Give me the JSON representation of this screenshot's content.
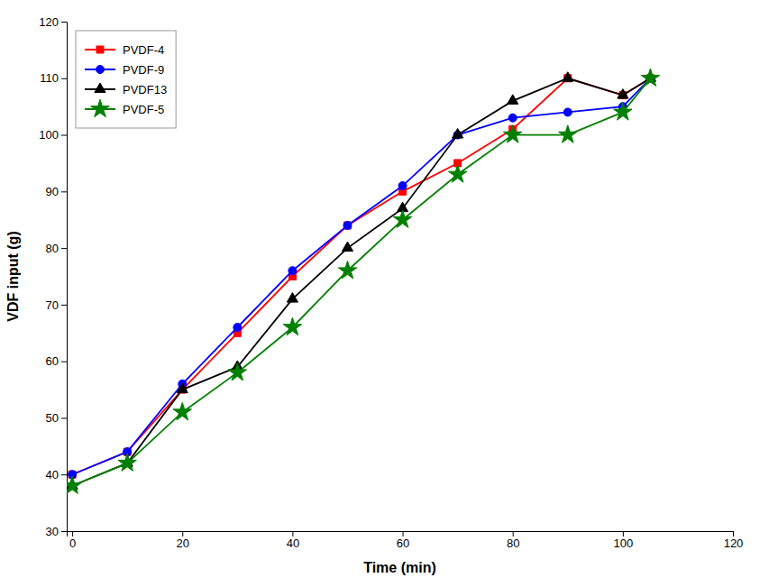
{
  "chart_data": {
    "type": "line",
    "x_label": "Time (min)",
    "y_label": "VDF input (g)",
    "x": [
      0,
      10,
      20,
      30,
      40,
      50,
      60,
      70,
      80,
      90,
      100,
      105
    ],
    "series": [
      {
        "name": "PVDF-4",
        "color": "#ff0000",
        "marker": "square",
        "values": [
          40,
          44,
          55,
          65,
          75,
          84,
          90,
          95,
          101,
          110,
          107,
          110
        ]
      },
      {
        "name": "PVDF-9",
        "color": "#0000ff",
        "marker": "circle",
        "values": [
          40,
          44,
          56,
          66,
          76,
          84,
          91,
          100,
          103,
          104,
          105,
          110
        ]
      },
      {
        "name": "PVDF13",
        "color": "#000000",
        "marker": "triangle",
        "values": [
          38,
          42,
          55,
          59,
          71,
          80,
          87,
          100,
          106,
          110,
          107,
          110
        ]
      },
      {
        "name": "PVDF-5",
        "color": "#008000",
        "marker": "star",
        "values": [
          38,
          42,
          51,
          58,
          66,
          76,
          85,
          93,
          100,
          100,
          104,
          110
        ]
      }
    ],
    "xlim": [
      -1,
      120
    ],
    "ylim": [
      30,
      120
    ],
    "xticks": [
      0,
      20,
      40,
      60,
      80,
      100,
      120
    ],
    "yticks": [
      30,
      40,
      50,
      60,
      70,
      80,
      90,
      100,
      110,
      120
    ],
    "legend": "upper left",
    "grid": false
  }
}
